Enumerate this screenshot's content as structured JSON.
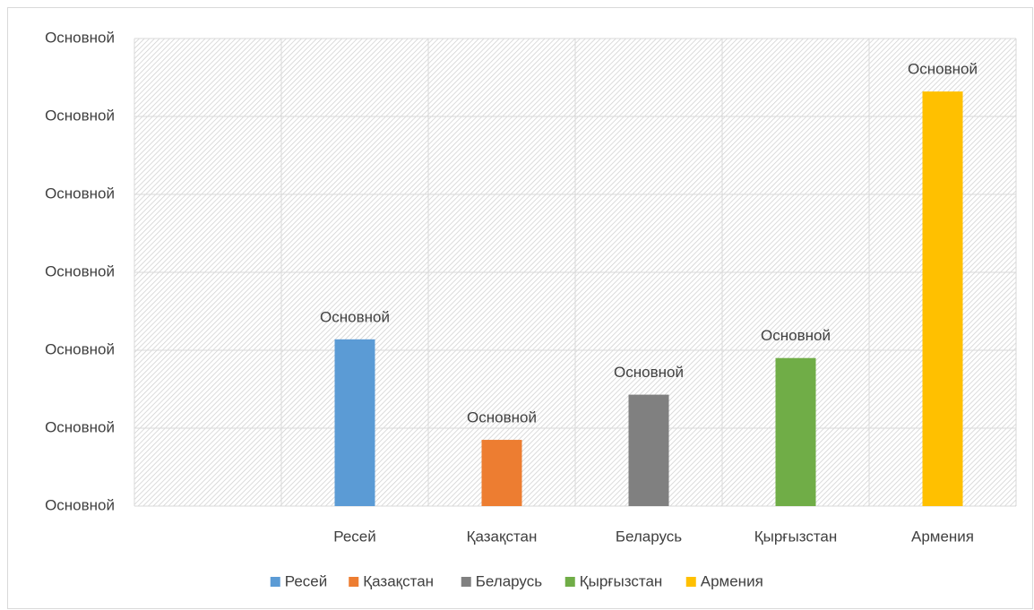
{
  "chart_data": {
    "type": "bar",
    "categories": [
      null,
      "Ресей",
      "Қазақстан",
      "Беларусь",
      "Қырғызстан",
      "Армения"
    ],
    "series": [
      {
        "name": "Ресей",
        "color": "#5b9bd5",
        "values": [
          null,
          2.14,
          null,
          null,
          null,
          null
        ],
        "value_labels": [
          null,
          "Основной",
          null,
          null,
          null,
          null
        ]
      },
      {
        "name": "Қазақстан",
        "color": "#ed7d31",
        "values": [
          null,
          null,
          0.85,
          null,
          null,
          null
        ],
        "value_labels": [
          null,
          null,
          "Основной",
          null,
          null,
          null
        ]
      },
      {
        "name": "Беларусь",
        "color": "#808080",
        "values": [
          null,
          null,
          null,
          1.43,
          null,
          null
        ],
        "value_labels": [
          null,
          null,
          null,
          "Основной",
          null,
          null
        ]
      },
      {
        "name": "Қырғызстан",
        "color": "#70ad47",
        "values": [
          null,
          null,
          null,
          null,
          1.9,
          null
        ],
        "value_labels": [
          null,
          null,
          null,
          null,
          "Основной",
          null
        ]
      },
      {
        "name": "Армения",
        "color": "#ffc000",
        "values": [
          null,
          null,
          null,
          null,
          null,
          5.32
        ],
        "value_labels": [
          null,
          null,
          null,
          null,
          null,
          "Основной"
        ]
      }
    ],
    "ylim": [
      0,
      6
    ],
    "yticks": [
      {
        "value": 0,
        "label": "Основной"
      },
      {
        "value": 1,
        "label": "Основной"
      },
      {
        "value": 2,
        "label": "Основной"
      },
      {
        "value": 3,
        "label": "Основной"
      },
      {
        "value": 4,
        "label": "Основной"
      },
      {
        "value": 5,
        "label": "Основной"
      },
      {
        "value": 6,
        "label": "Основной"
      }
    ],
    "grid": true,
    "legend": "bottom"
  }
}
